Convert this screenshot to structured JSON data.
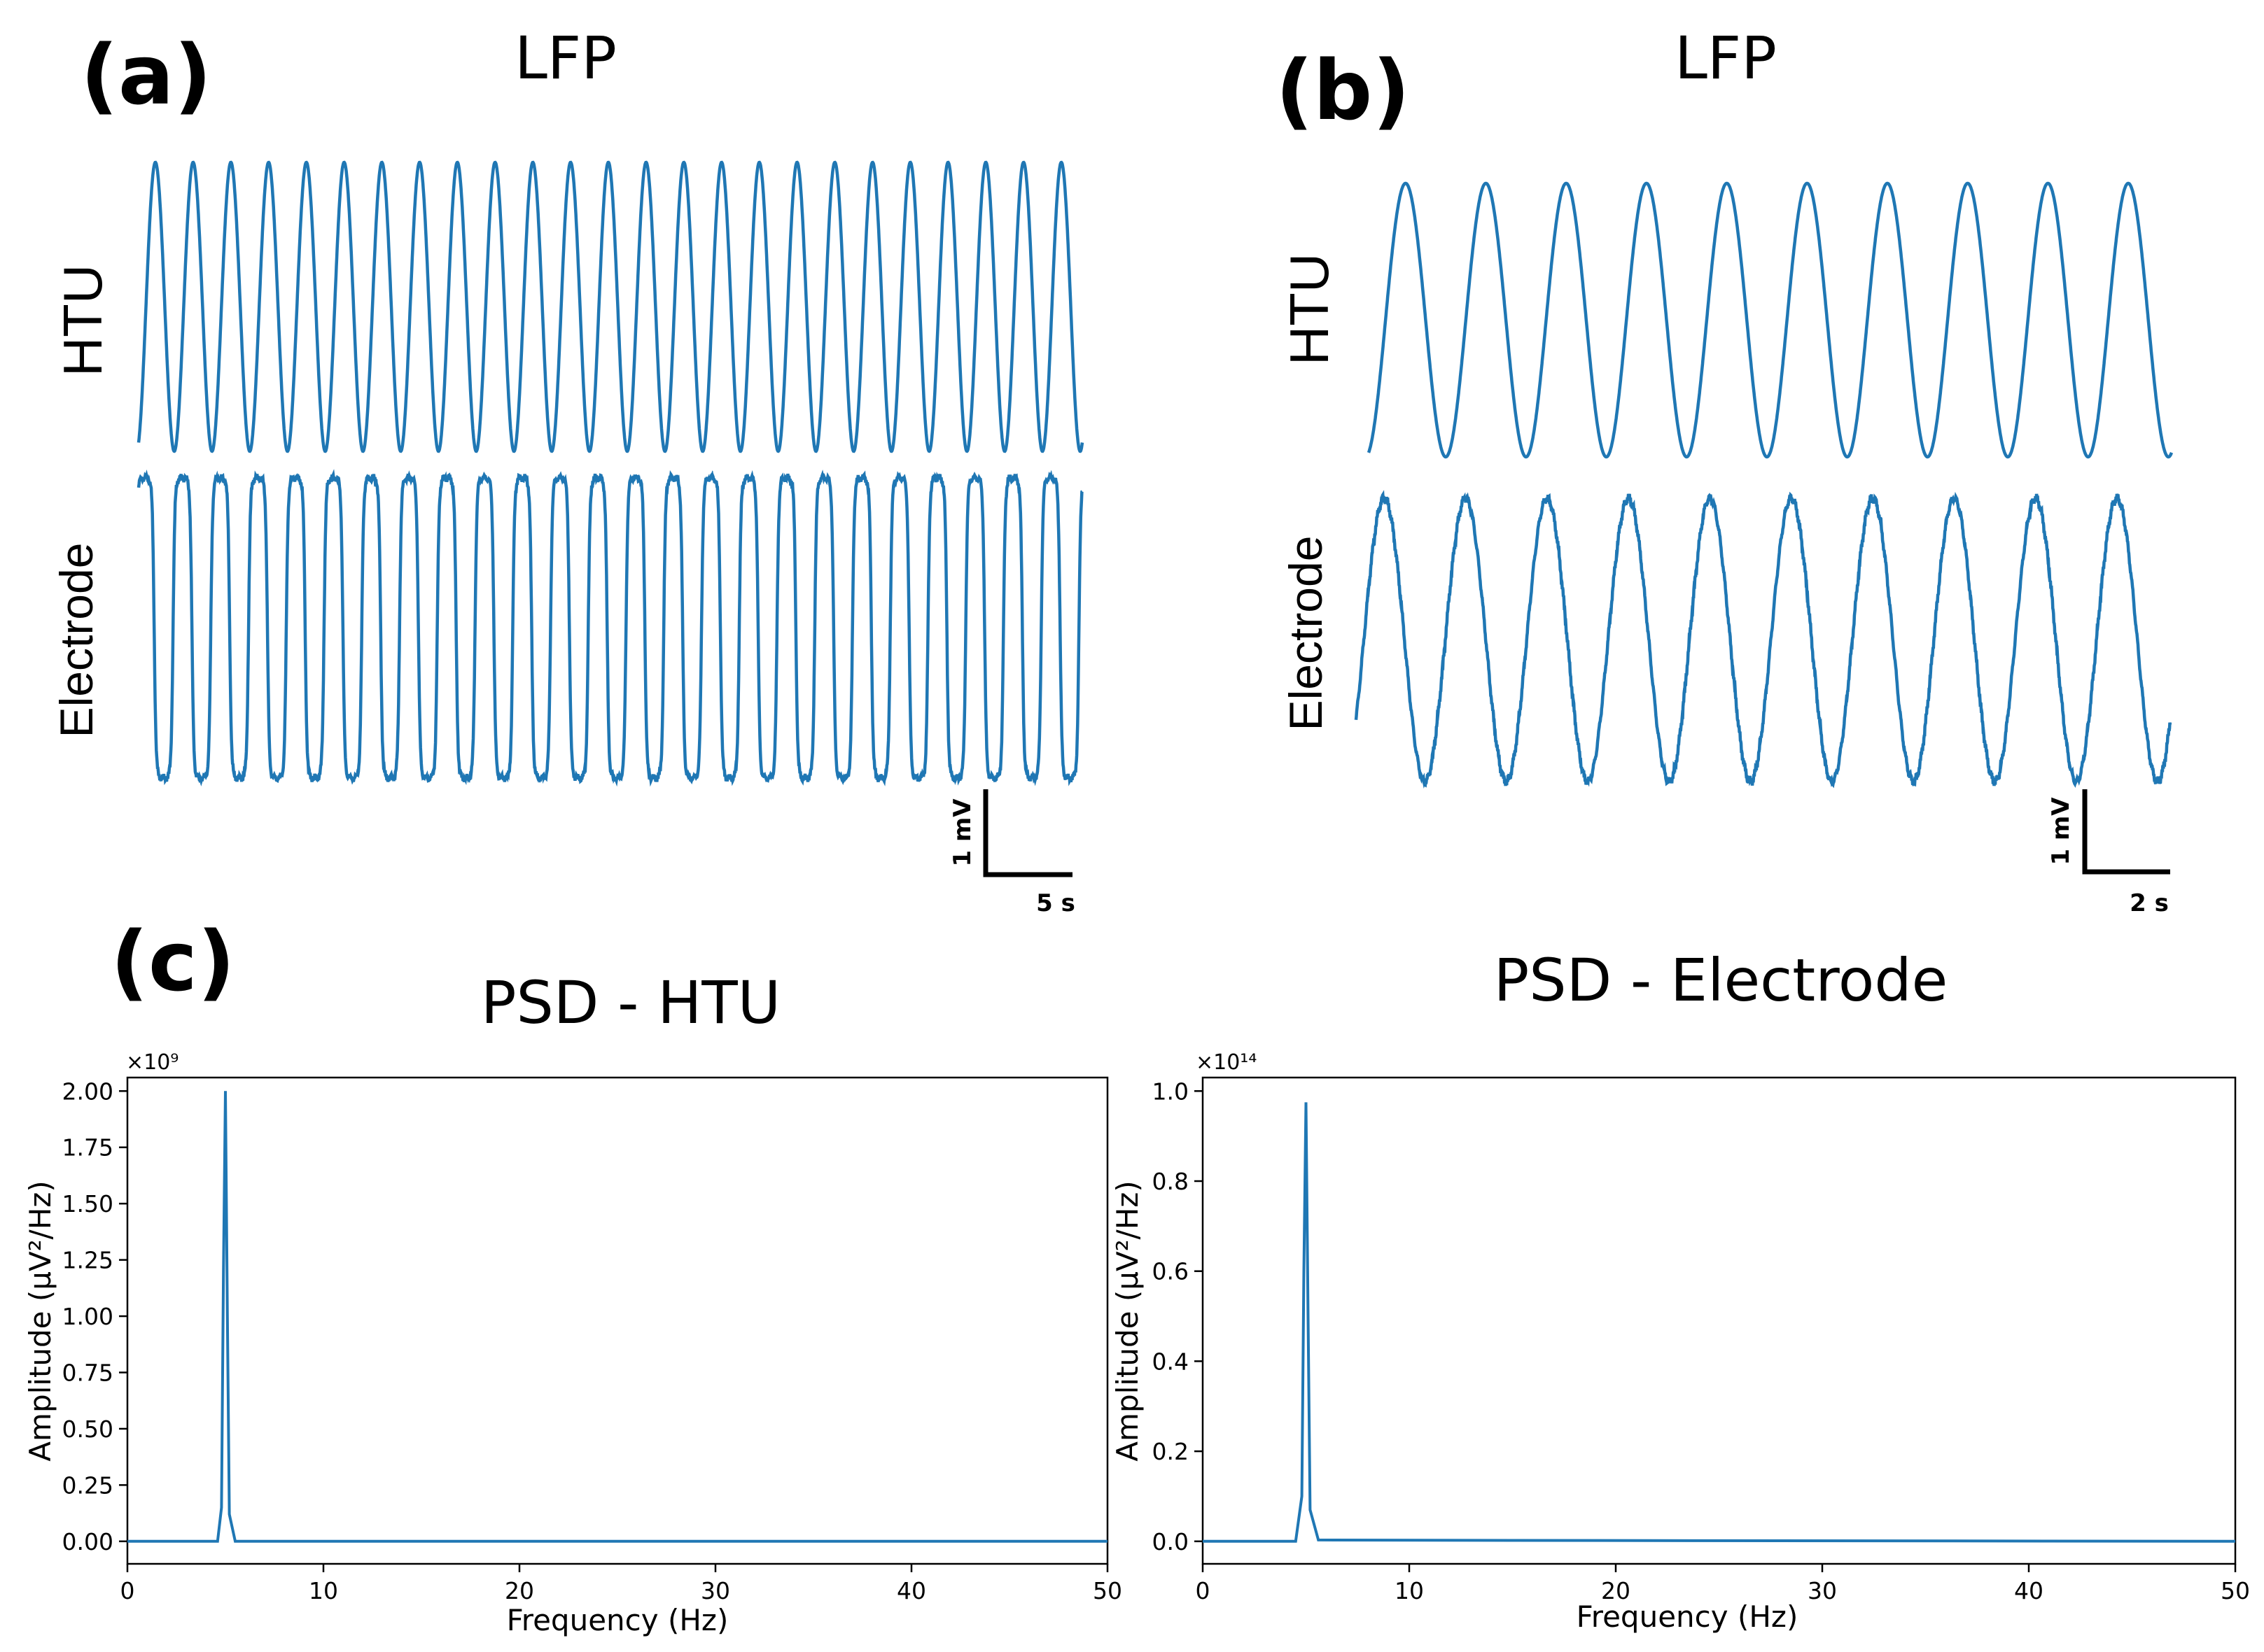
{
  "colors": {
    "trace": "#1f77b4",
    "axis": "#000000"
  },
  "panel_a": {
    "label": "(a)",
    "title": "LFP",
    "top_label": "HTU",
    "bottom_label": "Electrode",
    "scale_v": "1 mV",
    "scale_t": "5 s"
  },
  "panel_b": {
    "label": "(b)",
    "title": "LFP",
    "top_label": "HTU",
    "bottom_label": "Electrode",
    "scale_v": "1 mV",
    "scale_t": "2 s"
  },
  "panel_c": {
    "label": "(c)"
  },
  "chart_data": [
    {
      "type": "line",
      "title": "LFP",
      "panel": "a",
      "series": [
        {
          "name": "HTU",
          "cycles": 25,
          "shape": "sinusoid"
        },
        {
          "name": "Electrode",
          "cycles": 25,
          "shape": "square-like"
        }
      ],
      "scalebar": {
        "voltage": "1 mV",
        "time": "5 s"
      }
    },
    {
      "type": "line",
      "title": "LFP",
      "panel": "b",
      "series": [
        {
          "name": "HTU",
          "cycles": 10,
          "shape": "sinusoid"
        },
        {
          "name": "Electrode",
          "cycles": 10,
          "shape": "sinusoid"
        }
      ],
      "scalebar": {
        "voltage": "1 mV",
        "time": "2 s"
      }
    },
    {
      "type": "line",
      "title": "PSD - HTU",
      "xlabel": "Frequency (Hz)",
      "ylabel": "Amplitude (μV²/Hz)",
      "xlim": [
        0,
        50
      ],
      "ylim": [
        -0.1,
        2.06
      ],
      "y_multiplier": "×10⁹",
      "xticks": [
        "0",
        "10",
        "20",
        "30",
        "40",
        "50"
      ],
      "yticks": [
        "0.00",
        "0.25",
        "0.50",
        "0.75",
        "1.00",
        "1.25",
        "1.50",
        "1.75",
        "2.00"
      ],
      "series": [
        {
          "name": "PSD",
          "x": [
            0,
            4.6,
            4.8,
            4.9,
            5.0,
            5.1,
            5.2,
            5.5,
            50
          ],
          "y": [
            0,
            0,
            0.15,
            1.2,
            2.0,
            1.0,
            0.12,
            0,
            0
          ]
        }
      ]
    },
    {
      "type": "line",
      "title": "PSD - Electrode",
      "xlabel": "Frequency (Hz)",
      "ylabel": "Amplitude (μV²/Hz)",
      "xlim": [
        0,
        50
      ],
      "ylim": [
        -0.05,
        1.03
      ],
      "y_multiplier": "×10¹⁴",
      "xticks": [
        "0",
        "10",
        "20",
        "30",
        "40",
        "50"
      ],
      "yticks": [
        "0.0",
        "0.2",
        "0.4",
        "0.6",
        "0.8",
        "1.0"
      ],
      "series": [
        {
          "name": "PSD",
          "x": [
            0,
            4.5,
            4.8,
            4.9,
            5.0,
            5.1,
            5.2,
            5.6,
            15,
            50
          ],
          "y": [
            0,
            0,
            0.1,
            0.6,
            0.975,
            0.5,
            0.07,
            0.003,
            0.002,
            0
          ]
        }
      ]
    }
  ]
}
